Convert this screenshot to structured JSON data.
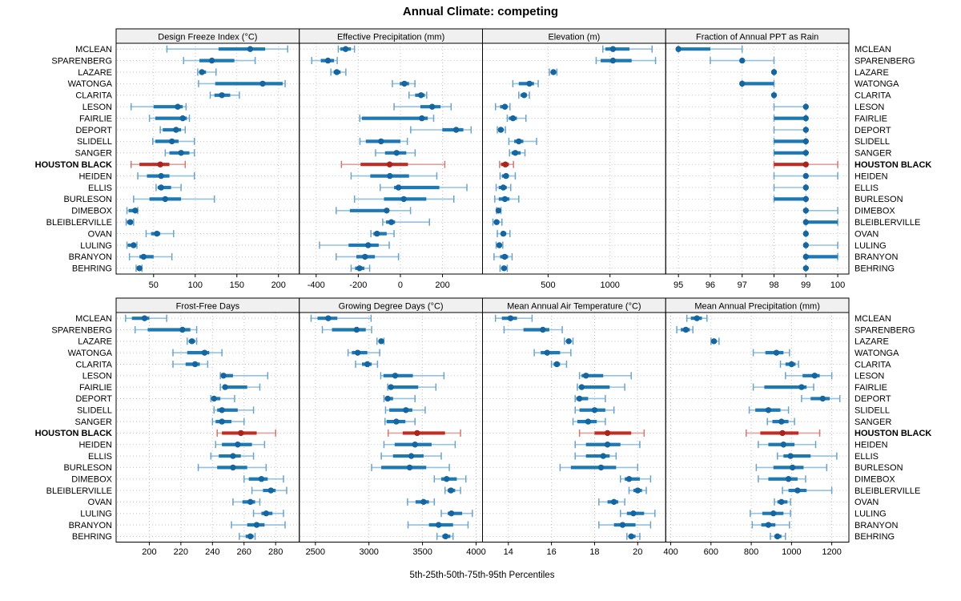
{
  "title": "Annual Climate: competing",
  "caption": "5th-25th-50th-75th-95th Percentiles",
  "highlight_series": "HOUSTON BLACK",
  "colors": {
    "blue_bar": "#1e78b4",
    "blue_light": "#93c1e0",
    "blue_cap": "#6ba3c9",
    "blue_dot": "#1566a0",
    "red_bar": "#c02d24",
    "red_light": "#e5a09a",
    "red_cap": "#d4776e",
    "red_dot": "#a8241c",
    "grid": "#c3c3c3",
    "strip_bg": "#f0f0f0",
    "panel_border": "#000000"
  },
  "categories": [
    "MCLEAN",
    "SPARENBERG",
    "LAZARE",
    "WATONGA",
    "CLARITA",
    "LESON",
    "FAIRLIE",
    "DEPORT",
    "SLIDELL",
    "SANGER",
    "HOUSTON BLACK",
    "HEIDEN",
    "ELLIS",
    "BURLESON",
    "DIMEBOX",
    "BLEIBLERVILLE",
    "OVAN",
    "LULING",
    "BRANYON",
    "BEHRING"
  ],
  "chart_data": [
    {
      "type": "percentile-dotplot",
      "title": "Design Freeze Index (°C)",
      "xlim": [
        5,
        225
      ],
      "ticks": [
        50,
        100,
        150,
        200
      ],
      "values": [
        [
          66,
          128,
          166,
          184,
          211
        ],
        [
          86,
          105,
          120,
          147,
          172
        ],
        [
          103,
          105,
          108,
          113,
          125
        ],
        [
          104,
          124,
          181,
          205,
          208
        ],
        [
          118,
          123,
          132,
          142,
          153
        ],
        [
          23,
          50,
          79,
          85,
          89
        ],
        [
          45,
          52,
          85,
          90,
          93
        ],
        [
          58,
          61,
          77,
          83,
          88
        ],
        [
          49,
          52,
          72,
          80,
          99
        ],
        [
          64,
          69,
          83,
          93,
          99
        ],
        [
          23,
          33,
          58,
          69,
          88
        ],
        [
          31,
          42,
          59,
          69,
          99
        ],
        [
          53,
          55,
          59,
          71,
          83
        ],
        [
          26,
          45,
          64,
          83,
          123
        ],
        [
          18,
          20,
          28,
          30,
          31
        ],
        [
          17,
          18,
          22,
          25,
          26
        ],
        [
          41,
          47,
          54,
          58,
          74
        ],
        [
          18,
          19,
          26,
          29,
          30
        ],
        [
          21,
          33,
          38,
          50,
          72
        ],
        [
          29,
          30,
          33,
          35,
          36
        ]
      ]
    },
    {
      "type": "percentile-dotplot",
      "title": "Effective Precipitation (mm)",
      "xlim": [
        -480,
        390
      ],
      "ticks": [
        -400,
        -200,
        0,
        200
      ],
      "values": [
        [
          -295,
          -285,
          -260,
          -235,
          -218
        ],
        [
          -421,
          -378,
          -344,
          -315,
          -300
        ],
        [
          -330,
          -317,
          -302,
          -284,
          -259
        ],
        [
          -38,
          -3,
          19,
          41,
          69
        ],
        [
          41,
          70,
          98,
          116,
          125
        ],
        [
          -30,
          95,
          151,
          191,
          241
        ],
        [
          -193,
          -183,
          102,
          130,
          158
        ],
        [
          49,
          199,
          265,
          299,
          336
        ],
        [
          -192,
          -164,
          -92,
          0,
          33
        ],
        [
          -118,
          -73,
          -18,
          28,
          70
        ],
        [
          -280,
          -189,
          -51,
          36,
          211
        ],
        [
          -234,
          -143,
          -50,
          41,
          173
        ],
        [
          -96,
          -30,
          -9,
          185,
          316
        ],
        [
          -218,
          -78,
          16,
          123,
          254
        ],
        [
          -305,
          -240,
          -65,
          -58,
          48
        ],
        [
          -84,
          -68,
          -43,
          -25,
          138
        ],
        [
          -140,
          -128,
          -111,
          -65,
          -30
        ],
        [
          -384,
          -246,
          -153,
          -103,
          -53
        ],
        [
          -305,
          -209,
          -168,
          -121,
          -9
        ],
        [
          -234,
          -215,
          -194,
          -171,
          -146
        ]
      ]
    },
    {
      "type": "percentile-dotplot",
      "title": "Elevation (m)",
      "xlim": [
        -30,
        1450
      ],
      "ticks": [
        500,
        1000
      ],
      "values": [
        [
          942,
          963,
          1024,
          1157,
          1340
        ],
        [
          888,
          925,
          1024,
          1175,
          1368
        ],
        [
          510,
          522,
          543,
          562,
          571
        ],
        [
          215,
          263,
          349,
          386,
          420
        ],
        [
          263,
          278,
          306,
          328,
          349
        ],
        [
          75,
          112,
          151,
          170,
          192
        ],
        [
          170,
          183,
          216,
          248,
          321
        ],
        [
          90,
          97,
          118,
          140,
          155
        ],
        [
          183,
          226,
          263,
          300,
          407
        ],
        [
          188,
          205,
          235,
          278,
          313
        ],
        [
          108,
          119,
          155,
          183,
          220
        ],
        [
          112,
          127,
          160,
          183,
          235
        ],
        [
          80,
          101,
          138,
          166,
          198
        ],
        [
          69,
          101,
          151,
          188,
          263
        ],
        [
          84,
          88,
          99,
          110,
          119
        ],
        [
          54,
          63,
          84,
          106,
          127
        ],
        [
          90,
          118,
          138,
          162,
          192
        ],
        [
          80,
          90,
          106,
          123,
          134
        ],
        [
          63,
          112,
          149,
          177,
          209
        ],
        [
          112,
          127,
          144,
          162,
          170
        ]
      ]
    },
    {
      "type": "percentile-dotplot",
      "title": "Fraction of Annual PPT as Rain",
      "xlim": [
        94.6,
        100.35
      ],
      "ticks": [
        95,
        96,
        97,
        98,
        99,
        100
      ],
      "values": [
        [
          95,
          95,
          95,
          96,
          97
        ],
        [
          96,
          97,
          97,
          97,
          98
        ],
        [
          98,
          98,
          98,
          98,
          98
        ],
        [
          97,
          97,
          97,
          98,
          98
        ],
        [
          98,
          98,
          98,
          98,
          98
        ],
        [
          98,
          99,
          99,
          99,
          99
        ],
        [
          98,
          98,
          99,
          99,
          99
        ],
        [
          98,
          99,
          99,
          99,
          99
        ],
        [
          98,
          98,
          99,
          99,
          99
        ],
        [
          98,
          98,
          99,
          99,
          99
        ],
        [
          98,
          98,
          99,
          99,
          100
        ],
        [
          98,
          99,
          99,
          99,
          100
        ],
        [
          98,
          99,
          99,
          99,
          99
        ],
        [
          98,
          98,
          99,
          99,
          99
        ],
        [
          99,
          99,
          99,
          99,
          100
        ],
        [
          99,
          99,
          99,
          100,
          100
        ],
        [
          99,
          99,
          99,
          99,
          99
        ],
        [
          99,
          99,
          99,
          99,
          100
        ],
        [
          99,
          99,
          99,
          100,
          100
        ],
        [
          99,
          99,
          99,
          99,
          99
        ]
      ]
    },
    {
      "type": "percentile-dotplot",
      "title": "Frost-Free Days",
      "xlim": [
        179,
        295
      ],
      "ticks": [
        200,
        220,
        240,
        260,
        280
      ],
      "values": [
        [
          185,
          189,
          197,
          200,
          211
        ],
        [
          191,
          199,
          221,
          226,
          230
        ],
        [
          224,
          225,
          227,
          229,
          230
        ],
        [
          215,
          224,
          235,
          238,
          246
        ],
        [
          215,
          223,
          229,
          232,
          237
        ],
        [
          245,
          246,
          247,
          253,
          275
        ],
        [
          245,
          247,
          248,
          262,
          270
        ],
        [
          239,
          240,
          241,
          245,
          254
        ],
        [
          241,
          243,
          246,
          256,
          266
        ],
        [
          240,
          242,
          246,
          252,
          260
        ],
        [
          243,
          246,
          258,
          268,
          280
        ],
        [
          242,
          246,
          256,
          265,
          273
        ],
        [
          239,
          244,
          253,
          258,
          266
        ],
        [
          231,
          243,
          253,
          262,
          274
        ],
        [
          260,
          263,
          271,
          275,
          285
        ],
        [
          265,
          272,
          277,
          280,
          287
        ],
        [
          253,
          259,
          264,
          267,
          270
        ],
        [
          266,
          271,
          274,
          278,
          285
        ],
        [
          252,
          262,
          268,
          273,
          286
        ],
        [
          257,
          261,
          264,
          266,
          267
        ]
      ]
    },
    {
      "type": "percentile-dotplot",
      "title": "Growing Degree Days (°C)",
      "xlim": [
        2350,
        4060
      ],
      "ticks": [
        2500,
        3000,
        3500,
        4000
      ],
      "values": [
        [
          2460,
          2520,
          2620,
          2705,
          3020
        ],
        [
          2565,
          2655,
          2885,
          2970,
          3025
        ],
        [
          3075,
          3090,
          3115,
          3130,
          3140
        ],
        [
          2805,
          2840,
          2895,
          2985,
          3100
        ],
        [
          2875,
          2935,
          2985,
          3025,
          3080
        ],
        [
          3110,
          3135,
          3245,
          3410,
          3700
        ],
        [
          3175,
          3190,
          3205,
          3460,
          3625
        ],
        [
          3140,
          3150,
          3175,
          3225,
          3430
        ],
        [
          3155,
          3190,
          3345,
          3405,
          3525
        ],
        [
          3150,
          3165,
          3255,
          3340,
          3430
        ],
        [
          3180,
          3315,
          3450,
          3710,
          3855
        ],
        [
          3140,
          3240,
          3430,
          3585,
          3805
        ],
        [
          3115,
          3225,
          3395,
          3510,
          3675
        ],
        [
          3025,
          3115,
          3380,
          3535,
          3750
        ],
        [
          3610,
          3675,
          3725,
          3820,
          3905
        ],
        [
          3710,
          3735,
          3765,
          3805,
          3855
        ],
        [
          3360,
          3435,
          3510,
          3560,
          3610
        ],
        [
          3675,
          3735,
          3770,
          3870,
          3965
        ],
        [
          3365,
          3560,
          3650,
          3785,
          3925
        ],
        [
          3635,
          3685,
          3715,
          3760,
          3785
        ]
      ]
    },
    {
      "type": "percentile-dotplot",
      "title": "Mean Annual Air Temperature (°C)",
      "xlim": [
        12.8,
        21.3
      ],
      "ticks": [
        14,
        16,
        18,
        20
      ],
      "values": [
        [
          13.4,
          13.7,
          14.1,
          14.4,
          15.1
        ],
        [
          13.8,
          14.7,
          15.6,
          15.9,
          16.5
        ],
        [
          16.6,
          16.7,
          16.8,
          16.9,
          17.0
        ],
        [
          15.2,
          15.5,
          15.8,
          16.4,
          16.9
        ],
        [
          16.0,
          16.1,
          16.25,
          16.4,
          16.7
        ],
        [
          17.3,
          17.4,
          17.6,
          18.4,
          19.7
        ],
        [
          17.2,
          17.3,
          17.4,
          18.7,
          19.4
        ],
        [
          17.1,
          17.15,
          17.3,
          17.7,
          18.5
        ],
        [
          17.1,
          17.3,
          18.0,
          18.5,
          18.9
        ],
        [
          17.0,
          17.2,
          17.7,
          18.1,
          18.5
        ],
        [
          17.3,
          18.0,
          18.6,
          19.7,
          20.3
        ],
        [
          17.1,
          17.6,
          18.6,
          19.2,
          20.1
        ],
        [
          17.1,
          17.6,
          18.4,
          18.7,
          19.0
        ],
        [
          16.4,
          16.9,
          18.3,
          19.0,
          20.0
        ],
        [
          19.2,
          19.4,
          19.6,
          20.1,
          20.6
        ],
        [
          19.6,
          19.8,
          20.0,
          20.2,
          20.4
        ],
        [
          18.2,
          18.6,
          18.9,
          19.1,
          19.4
        ],
        [
          19.2,
          19.5,
          19.8,
          20.3,
          20.8
        ],
        [
          18.2,
          18.9,
          19.3,
          19.9,
          20.6
        ],
        [
          19.5,
          19.6,
          19.7,
          19.9,
          20.1
        ]
      ]
    },
    {
      "type": "percentile-dotplot",
      "title": "Mean Annual Precipitation (mm)",
      "xlim": [
        375,
        1285
      ],
      "ticks": [
        400,
        600,
        800,
        1000,
        1200
      ],
      "values": [
        [
          480,
          500,
          530,
          555,
          580
        ],
        [
          430,
          450,
          475,
          495,
          510
        ],
        [
          600,
          605,
          615,
          625,
          640
        ],
        [
          810,
          870,
          925,
          960,
          990
        ],
        [
          945,
          970,
          1000,
          1020,
          1035
        ],
        [
          970,
          1055,
          1115,
          1140,
          1200
        ],
        [
          810,
          865,
          1050,
          1075,
          1110
        ],
        [
          1050,
          1095,
          1155,
          1190,
          1240
        ],
        [
          790,
          820,
          885,
          945,
          985
        ],
        [
          880,
          905,
          950,
          985,
          1015
        ],
        [
          775,
          845,
          955,
          1035,
          1140
        ],
        [
          835,
          885,
          960,
          1015,
          1120
        ],
        [
          930,
          960,
          995,
          1095,
          1225
        ],
        [
          825,
          910,
          1005,
          1060,
          1175
        ],
        [
          835,
          885,
          985,
          1030,
          1070
        ],
        [
          955,
          985,
          1030,
          1075,
          1200
        ],
        [
          915,
          930,
          950,
          980,
          995
        ],
        [
          795,
          855,
          910,
          960,
          995
        ],
        [
          805,
          850,
          885,
          920,
          990
        ],
        [
          895,
          915,
          930,
          950,
          970
        ]
      ]
    }
  ]
}
